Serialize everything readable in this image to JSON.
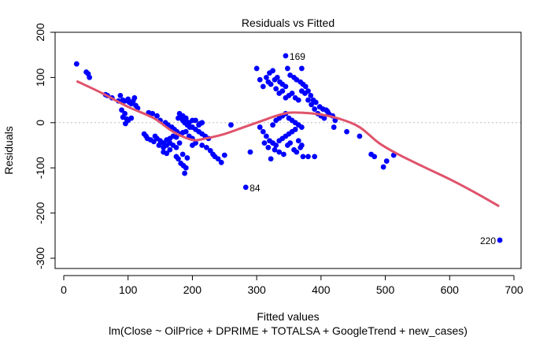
{
  "chart_data": {
    "type": "scatter",
    "title": "Residuals vs Fitted",
    "xlabel": "Fitted values",
    "ylabel": "Residuals",
    "subtitle": "lm(Close ~ OilPrice + DPRIME + TOTALSA + GoogleTrend + new_cases)",
    "xlim": [
      0,
      700
    ],
    "ylim": [
      -300,
      200
    ],
    "xticks": [
      0,
      100,
      200,
      300,
      400,
      500,
      600,
      700
    ],
    "yticks": [
      -300,
      -200,
      -100,
      0,
      100,
      200
    ],
    "point_color": "#0000FF",
    "smooth_color": "#DF536B",
    "zero_line_color": "#BEBEBE",
    "points": [
      [
        20,
        130
      ],
      [
        35,
        112
      ],
      [
        38,
        108
      ],
      [
        40,
        100
      ],
      [
        65,
        62
      ],
      [
        68,
        60
      ],
      [
        75,
        55
      ],
      [
        88,
        60
      ],
      [
        92,
        50
      ],
      [
        95,
        48
      ],
      [
        100,
        52
      ],
      [
        102,
        45
      ],
      [
        105,
        42
      ],
      [
        108,
        48
      ],
      [
        110,
        55
      ],
      [
        112,
        38
      ],
      [
        115,
        32
      ],
      [
        85,
        48
      ],
      [
        90,
        28
      ],
      [
        95,
        20
      ],
      [
        92,
        12
      ],
      [
        98,
        8
      ],
      [
        100,
        5
      ],
      [
        96,
        -2
      ],
      [
        105,
        10
      ],
      [
        125,
        -25
      ],
      [
        128,
        -30
      ],
      [
        130,
        -35
      ],
      [
        135,
        -38
      ],
      [
        140,
        -42
      ],
      [
        145,
        -35
      ],
      [
        150,
        -40
      ],
      [
        155,
        -45
      ],
      [
        160,
        -38
      ],
      [
        165,
        -35
      ],
      [
        170,
        -30
      ],
      [
        175,
        -32
      ],
      [
        142,
        -30
      ],
      [
        148,
        -50
      ],
      [
        155,
        -55
      ],
      [
        160,
        -50
      ],
      [
        132,
        22
      ],
      [
        138,
        20
      ],
      [
        145,
        15
      ],
      [
        150,
        5
      ],
      [
        158,
        0
      ],
      [
        162,
        -5
      ],
      [
        168,
        -10
      ],
      [
        172,
        -15
      ],
      [
        176,
        -20
      ],
      [
        180,
        -25
      ],
      [
        185,
        -22
      ],
      [
        190,
        -20
      ],
      [
        195,
        -30
      ],
      [
        200,
        -35
      ],
      [
        178,
        10
      ],
      [
        182,
        15
      ],
      [
        185,
        5
      ],
      [
        188,
        0
      ],
      [
        192,
        -5
      ],
      [
        196,
        -10
      ],
      [
        180,
        20
      ],
      [
        185,
        15
      ],
      [
        190,
        10
      ],
      [
        195,
        0
      ],
      [
        200,
        -10
      ],
      [
        205,
        -15
      ],
      [
        210,
        -20
      ],
      [
        215,
        -25
      ],
      [
        220,
        -30
      ],
      [
        225,
        -35
      ],
      [
        210,
        -5
      ],
      [
        215,
        0
      ],
      [
        205,
        5
      ],
      [
        212,
        -2
      ],
      [
        178,
        -80
      ],
      [
        182,
        -90
      ],
      [
        186,
        -95
      ],
      [
        190,
        -100
      ],
      [
        188,
        -112
      ],
      [
        175,
        -75
      ],
      [
        185,
        -70
      ],
      [
        192,
        -78
      ],
      [
        200,
        -50
      ],
      [
        205,
        -45
      ],
      [
        215,
        -50
      ],
      [
        222,
        -55
      ],
      [
        228,
        -62
      ],
      [
        232,
        -70
      ],
      [
        235,
        -75
      ],
      [
        240,
        -80
      ],
      [
        245,
        -88
      ],
      [
        250,
        -72
      ],
      [
        260,
        -5
      ],
      [
        200,
        5
      ],
      [
        190,
        5
      ],
      [
        165,
        -45
      ],
      [
        170,
        -50
      ],
      [
        175,
        -55
      ],
      [
        180,
        -45
      ],
      [
        155,
        -65
      ],
      [
        160,
        -68
      ],
      [
        165,
        -60
      ],
      [
        283,
        -143
      ],
      [
        290,
        -65
      ],
      [
        300,
        120
      ],
      [
        305,
        95
      ],
      [
        310,
        80
      ],
      [
        315,
        100
      ],
      [
        320,
        110
      ],
      [
        325,
        115
      ],
      [
        318,
        90
      ],
      [
        322,
        85
      ],
      [
        328,
        95
      ],
      [
        332,
        100
      ],
      [
        336,
        90
      ],
      [
        340,
        85
      ],
      [
        345,
        80
      ],
      [
        330,
        75
      ],
      [
        335,
        65
      ],
      [
        340,
        70
      ],
      [
        345,
        55
      ],
      [
        350,
        60
      ],
      [
        355,
        65
      ],
      [
        360,
        55
      ],
      [
        365,
        50
      ],
      [
        370,
        70
      ],
      [
        375,
        65
      ],
      [
        380,
        50
      ],
      [
        385,
        40
      ],
      [
        390,
        30
      ],
      [
        395,
        20
      ],
      [
        400,
        15
      ],
      [
        405,
        10
      ],
      [
        410,
        25
      ],
      [
        420,
        -10
      ],
      [
        305,
        -10
      ],
      [
        310,
        -20
      ],
      [
        315,
        -30
      ],
      [
        320,
        -40
      ],
      [
        325,
        -45
      ],
      [
        330,
        -50
      ],
      [
        335,
        -40
      ],
      [
        340,
        -35
      ],
      [
        345,
        -30
      ],
      [
        350,
        -25
      ],
      [
        355,
        -20
      ],
      [
        360,
        -15
      ],
      [
        365,
        -40
      ],
      [
        370,
        -50
      ],
      [
        325,
        -5
      ],
      [
        330,
        5
      ],
      [
        335,
        10
      ],
      [
        340,
        15
      ],
      [
        345,
        20
      ],
      [
        350,
        10
      ],
      [
        355,
        5
      ],
      [
        360,
        0
      ],
      [
        365,
        -5
      ],
      [
        370,
        -10
      ],
      [
        312,
        -45
      ],
      [
        318,
        -55
      ],
      [
        322,
        -80
      ],
      [
        328,
        -60
      ],
      [
        335,
        -65
      ],
      [
        342,
        -70
      ],
      [
        348,
        -50
      ],
      [
        352,
        -45
      ],
      [
        358,
        -60
      ],
      [
        362,
        -65
      ],
      [
        368,
        -55
      ],
      [
        372,
        -75
      ],
      [
        380,
        -75
      ],
      [
        390,
        -75
      ],
      [
        345,
        148
      ],
      [
        348,
        120
      ],
      [
        352,
        105
      ],
      [
        358,
        100
      ],
      [
        362,
        95
      ],
      [
        368,
        90
      ],
      [
        372,
        85
      ],
      [
        376,
        80
      ],
      [
        380,
        70
      ],
      [
        384,
        60
      ],
      [
        388,
        50
      ],
      [
        392,
        45
      ],
      [
        398,
        35
      ],
      [
        403,
        30
      ],
      [
        408,
        28
      ],
      [
        412,
        20
      ],
      [
        418,
        15
      ],
      [
        422,
        5
      ],
      [
        370,
        120
      ],
      [
        440,
        -20
      ],
      [
        460,
        -30
      ],
      [
        478,
        -70
      ],
      [
        483,
        -75
      ],
      [
        497,
        -98
      ],
      [
        502,
        -85
      ],
      [
        513,
        -72
      ],
      [
        678,
        -260
      ]
    ],
    "smooth": [
      [
        20,
        92
      ],
      [
        60,
        65
      ],
      [
        100,
        35
      ],
      [
        140,
        10
      ],
      [
        170,
        -20
      ],
      [
        200,
        -38
      ],
      [
        220,
        -35
      ],
      [
        250,
        -25
      ],
      [
        280,
        -10
      ],
      [
        310,
        5
      ],
      [
        330,
        15
      ],
      [
        350,
        22
      ],
      [
        370,
        22
      ],
      [
        400,
        18
      ],
      [
        430,
        8
      ],
      [
        460,
        -10
      ],
      [
        490,
        -45
      ],
      [
        520,
        -70
      ],
      [
        560,
        -98
      ],
      [
        600,
        -125
      ],
      [
        640,
        -155
      ],
      [
        677,
        -185
      ]
    ],
    "point_labels": [
      {
        "text": "169",
        "x": 345,
        "y": 148,
        "side": "right"
      },
      {
        "text": "84",
        "x": 283,
        "y": -143,
        "side": "right"
      },
      {
        "text": "220",
        "x": 678,
        "y": -260,
        "side": "left"
      }
    ]
  }
}
